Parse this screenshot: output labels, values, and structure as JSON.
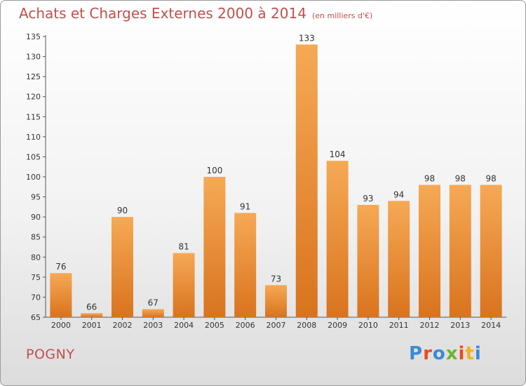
{
  "header": {
    "title": "Achats et Charges Externes 2000 à 2014",
    "subtitle": "(en milliers d'€)"
  },
  "footer": {
    "place": "POGNY",
    "brand": "Proxiti"
  },
  "colors": {
    "bar_light": "#f6a955",
    "bar_dark": "#d9731e",
    "title": "#c0504d",
    "brand_letters": [
      "#3a8ad6",
      "#e84c1c",
      "#3a8ad6",
      "#6bb52c",
      "#e84c1c",
      "#f5b020",
      "#3a8ad6"
    ]
  },
  "chart_data": {
    "type": "bar",
    "title": "Achats et Charges Externes 2000 à 2014",
    "subtitle": "(en milliers d'€)",
    "categories": [
      "2000",
      "2001",
      "2002",
      "2003",
      "2004",
      "2005",
      "2006",
      "2007",
      "2008",
      "2009",
      "2010",
      "2011",
      "2012",
      "2013",
      "2014"
    ],
    "values": [
      76,
      66,
      90,
      67,
      81,
      100,
      91,
      73,
      133,
      104,
      93,
      94,
      98,
      98,
      98
    ],
    "ylim": [
      65,
      135
    ],
    "yticks": [
      65,
      70,
      75,
      80,
      85,
      90,
      95,
      100,
      105,
      110,
      115,
      120,
      125,
      130,
      135
    ],
    "grid": false,
    "legend": "none"
  }
}
